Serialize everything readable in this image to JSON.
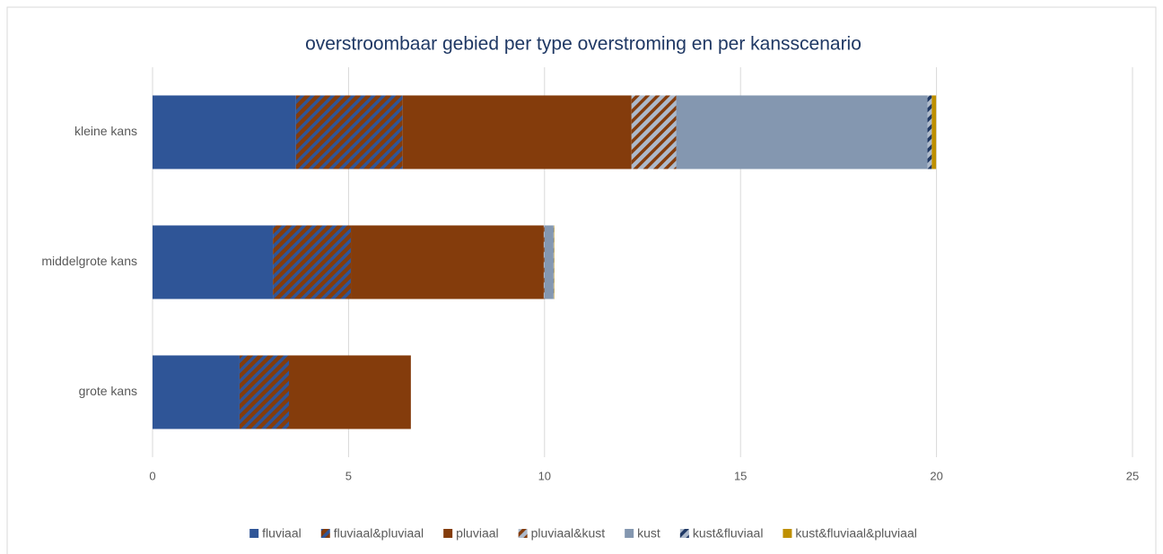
{
  "chart_data": {
    "type": "stacked-barh",
    "title": "overstroombaar gebied per type overstroming en per kansscenario",
    "categories": [
      "kleine kans",
      "middelgrote kans",
      "grote kans"
    ],
    "series": [
      {
        "name": "fluviaal",
        "color": "#2f5597",
        "values": [
          3.66,
          3.07,
          2.22
        ]
      },
      {
        "name": "fluviaal&pluviaal",
        "color": "#843c0c",
        "hatch": "#2f5597",
        "values": [
          2.72,
          1.99,
          1.26
        ]
      },
      {
        "name": "pluviaal",
        "color": "#843c0c",
        "values": [
          5.84,
          4.92,
          3.11
        ]
      },
      {
        "name": "pluviaal&kust",
        "color": "#adb9ca",
        "hatch": "#843c0c",
        "values": [
          1.14,
          0.02,
          0
        ]
      },
      {
        "name": "kust",
        "color": "#8497b0",
        "values": [
          6.41,
          0.23,
          0
        ]
      },
      {
        "name": "kust&fluviaal",
        "color": "#adb9ca",
        "hatch": "#1f3864",
        "values": [
          0.11,
          0.01,
          0
        ]
      },
      {
        "name": "kust&fluviaal&pluviaal",
        "color": "#bf9000",
        "values": [
          0.11,
          0.01,
          0
        ]
      }
    ],
    "xlim": [
      0,
      25
    ],
    "xticks": [
      0,
      5,
      10,
      15,
      20,
      25
    ],
    "grid": true,
    "legend": "bottom"
  }
}
